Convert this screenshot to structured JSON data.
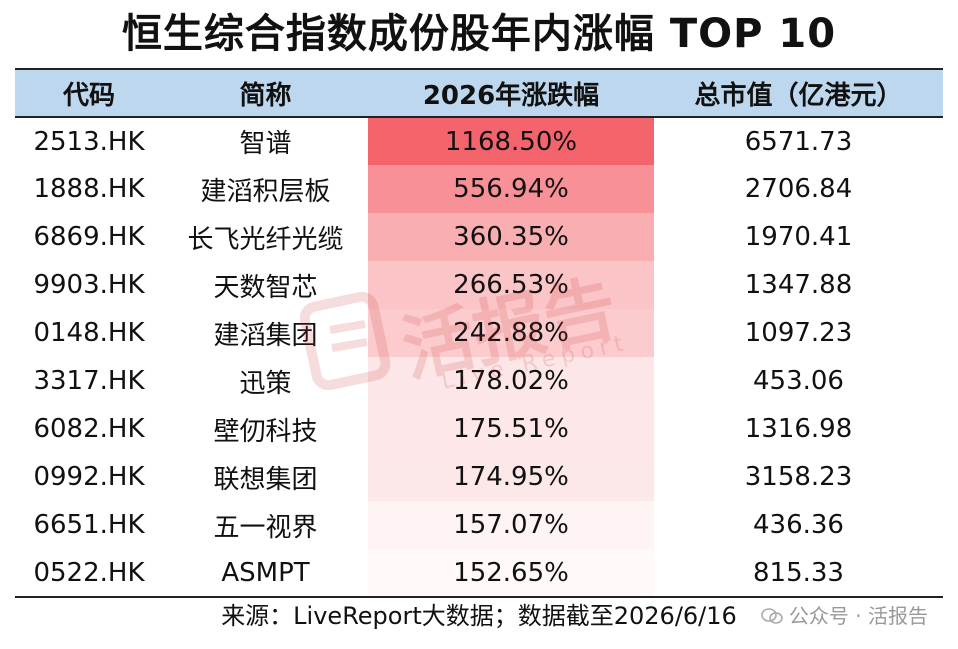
{
  "title": "恒生综合指数成份股年内涨幅 TOP 10",
  "headers": [
    "代码",
    "简称",
    "2026年涨跌幅",
    "总市值（亿港元）"
  ],
  "rows": [
    {
      "code": "2513.HK",
      "name": "智谱",
      "change": "1168.50%",
      "change_value": 1168.5,
      "mcap": "6571.73"
    },
    {
      "code": "1888.HK",
      "name": "建滔积层板",
      "change": "556.94%",
      "change_value": 556.94,
      "mcap": "2706.84"
    },
    {
      "code": "6869.HK",
      "name": "长飞光纤光缆",
      "change": "360.35%",
      "change_value": 360.35,
      "mcap": "1970.41"
    },
    {
      "code": "9903.HK",
      "name": "天数智芯",
      "change": "266.53%",
      "change_value": 266.53,
      "mcap": "1347.88"
    },
    {
      "code": "0148.HK",
      "name": "建滔集团",
      "change": "242.88%",
      "change_value": 242.88,
      "mcap": "1097.23"
    },
    {
      "code": "3317.HK",
      "name": "迅策",
      "change": "178.02%",
      "change_value": 178.02,
      "mcap": "453.06"
    },
    {
      "code": "6082.HK",
      "name": "壁仞科技",
      "change": "175.51%",
      "change_value": 175.51,
      "mcap": "1316.98"
    },
    {
      "code": "0992.HK",
      "name": "联想集团",
      "change": "174.95%",
      "change_value": 174.95,
      "mcap": "3158.23"
    },
    {
      "code": "6651.HK",
      "name": "五一视界",
      "change": "157.07%",
      "change_value": 157.07,
      "mcap": "436.36"
    },
    {
      "code": "0522.HK",
      "name": "ASMPT",
      "change": "152.65%",
      "change_value": 152.65,
      "mcap": "815.33"
    }
  ],
  "source": "来源：LiveReport大数据；数据截至2026/6/16",
  "watermark": {
    "corner_text": "公众号 · 活报告",
    "logo_text": "活报告",
    "logo_subtext": "Live Report"
  },
  "colors": {
    "header_bg": "#bdd7ee",
    "heat_max": "#f4646c",
    "heat_min": "#ffffff"
  }
}
